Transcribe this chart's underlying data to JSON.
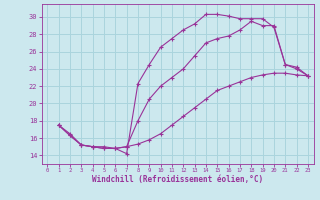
{
  "bg_color": "#cce8ee",
  "grid_color": "#aad4dd",
  "line_color": "#993399",
  "marker": "+",
  "xlabel": "Windchill (Refroidissement éolien,°C)",
  "xlim": [
    -0.5,
    23.5
  ],
  "ylim": [
    13.0,
    31.5
  ],
  "yticks": [
    14,
    16,
    18,
    20,
    22,
    24,
    26,
    28,
    30
  ],
  "xticks": [
    0,
    1,
    2,
    3,
    4,
    5,
    6,
    7,
    8,
    9,
    10,
    11,
    12,
    13,
    14,
    15,
    16,
    17,
    18,
    19,
    20,
    21,
    22,
    23
  ],
  "curve1_x": [
    1,
    2,
    3,
    4,
    5,
    6,
    7,
    8,
    9,
    10,
    11,
    12,
    13,
    14,
    15,
    16,
    17,
    18,
    19,
    20,
    21,
    22,
    23
  ],
  "curve1_y": [
    17.5,
    16.5,
    15.2,
    15.0,
    15.0,
    14.8,
    14.2,
    22.3,
    24.5,
    26.5,
    27.5,
    28.5,
    29.2,
    30.3,
    30.3,
    30.1,
    29.8,
    29.8,
    29.8,
    28.8,
    24.5,
    24.0,
    23.2
  ],
  "curve2_x": [
    1,
    2,
    3,
    4,
    5,
    6,
    7,
    8,
    9,
    10,
    11,
    12,
    13,
    14,
    15,
    16,
    17,
    18,
    19,
    20,
    21,
    22,
    23
  ],
  "curve2_y": [
    17.5,
    16.3,
    15.2,
    15.0,
    14.8,
    14.8,
    15.0,
    18.0,
    20.5,
    22.0,
    23.0,
    24.0,
    25.5,
    27.0,
    27.5,
    27.8,
    28.5,
    29.5,
    29.0,
    29.0,
    24.5,
    24.2,
    23.2
  ],
  "curve3_x": [
    1,
    2,
    3,
    4,
    5,
    6,
    7,
    8,
    9,
    10,
    11,
    12,
    13,
    14,
    15,
    16,
    17,
    18,
    19,
    20,
    21,
    22,
    23
  ],
  "curve3_y": [
    17.5,
    16.3,
    15.2,
    15.0,
    14.8,
    14.8,
    15.0,
    15.3,
    15.8,
    16.5,
    17.5,
    18.5,
    19.5,
    20.5,
    21.5,
    22.0,
    22.5,
    23.0,
    23.3,
    23.5,
    23.5,
    23.3,
    23.2
  ]
}
